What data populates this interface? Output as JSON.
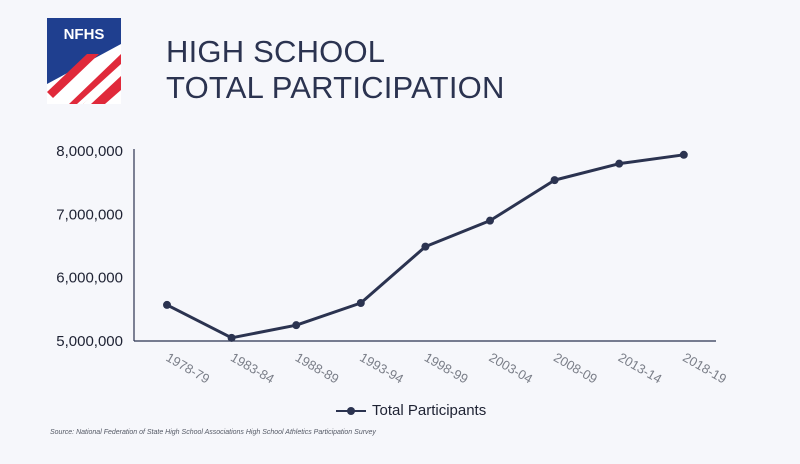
{
  "header": {
    "logo_text": "NFHS",
    "title_line1": "HIGH SCHOOL",
    "title_line2": "TOTAL PARTICIPATION"
  },
  "colors": {
    "line": "#2b3350",
    "axis": "#2b3350",
    "logo_blue": "#1f3f8f",
    "logo_red": "#e0293a"
  },
  "chart_data": {
    "type": "line",
    "title": "HIGH SCHOOL TOTAL PARTICIPATION",
    "xlabel": "",
    "ylabel": "",
    "categories": [
      "1978-79",
      "1983-84",
      "1988-89",
      "1993-94",
      "1998-99",
      "2003-04",
      "2008-09",
      "2013-14",
      "2018-19"
    ],
    "y_ticks": [
      5000000,
      6000000,
      7000000,
      8000000
    ],
    "y_tick_labels": [
      "5,000,000",
      "6,000,000",
      "7,000,000",
      "8,000,000"
    ],
    "ylim": [
      5000000,
      8000000
    ],
    "grid": false,
    "legend_position": "bottom-center",
    "series": [
      {
        "name": "Total Participants",
        "values": [
          5570000,
          5050000,
          5250000,
          5600000,
          6490000,
          6900000,
          7540000,
          7800000,
          7940000
        ]
      }
    ]
  },
  "legend": {
    "label": "Total Participants"
  },
  "source": "Source: National Federation of State High School Associations High School Athletics Participation Survey"
}
